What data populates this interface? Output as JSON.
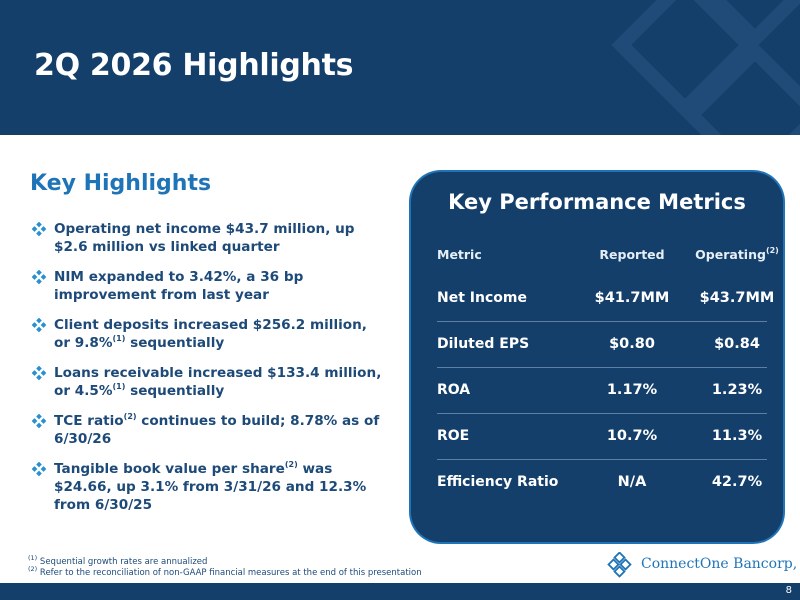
{
  "slide": {
    "title": "2Q 2026 Highlights",
    "page_number": "8"
  },
  "key_highlights": {
    "heading": "Key Highlights",
    "bullets": [
      {
        "pre": "Operating net income $43.7 million, up $2.6 million vs linked quarter",
        "sup": "",
        "post": ""
      },
      {
        "pre": "NIM expanded to 3.42%, a 36 bp improvement from last year",
        "sup": "",
        "post": ""
      },
      {
        "pre": "Client deposits increased $256.2 million, or 9.8%",
        "sup": "(1)",
        "post": " sequentially"
      },
      {
        "pre": "Loans receivable increased $133.4 million, or 4.5%",
        "sup": "(1)",
        "post": " sequentially"
      },
      {
        "pre": "TCE ratio",
        "sup": "(2)",
        "post": " continues to build; 8.78% as of 6/30/26"
      },
      {
        "pre": "Tangible book value per share",
        "sup": "(2)",
        "post": " was $24.66, up 3.1% from 3/31/26 and 12.3% from 6/30/25"
      }
    ]
  },
  "metrics": {
    "title": "Key Performance Metrics",
    "headers": {
      "metric": "Metric",
      "reported": "Reported",
      "operating": "Operating",
      "operating_sup": "(2)"
    },
    "rows": [
      {
        "metric": "Net Income",
        "reported": "$41.7MM",
        "operating": "$43.7MM"
      },
      {
        "metric": "Diluted EPS",
        "reported": "$0.80",
        "operating": "$0.84"
      },
      {
        "metric": "ROA",
        "reported": "1.17%",
        "operating": "1.23%"
      },
      {
        "metric": "ROE",
        "reported": "10.7%",
        "operating": "11.3%"
      },
      {
        "metric": "Efficiency Ratio",
        "reported": "N/A",
        "operating": "42.7%"
      }
    ]
  },
  "footnotes": [
    {
      "sup": "(1)",
      "text": " Sequential growth rates are annualized"
    },
    {
      "sup": "(2)",
      "text": " Refer to the reconciliation of non-GAAP financial measures at the end of this presentation"
    }
  ],
  "logo": {
    "text": "ConnectOne Bancorp, Inc."
  },
  "colors": {
    "navy": "#143f6b",
    "accent_blue": "#1f74b8",
    "text_blue": "#1d4a78"
  },
  "icons": {
    "bullet": "four-diamond-bullet-icon",
    "logo": "connectone-diamond-logo-icon"
  }
}
